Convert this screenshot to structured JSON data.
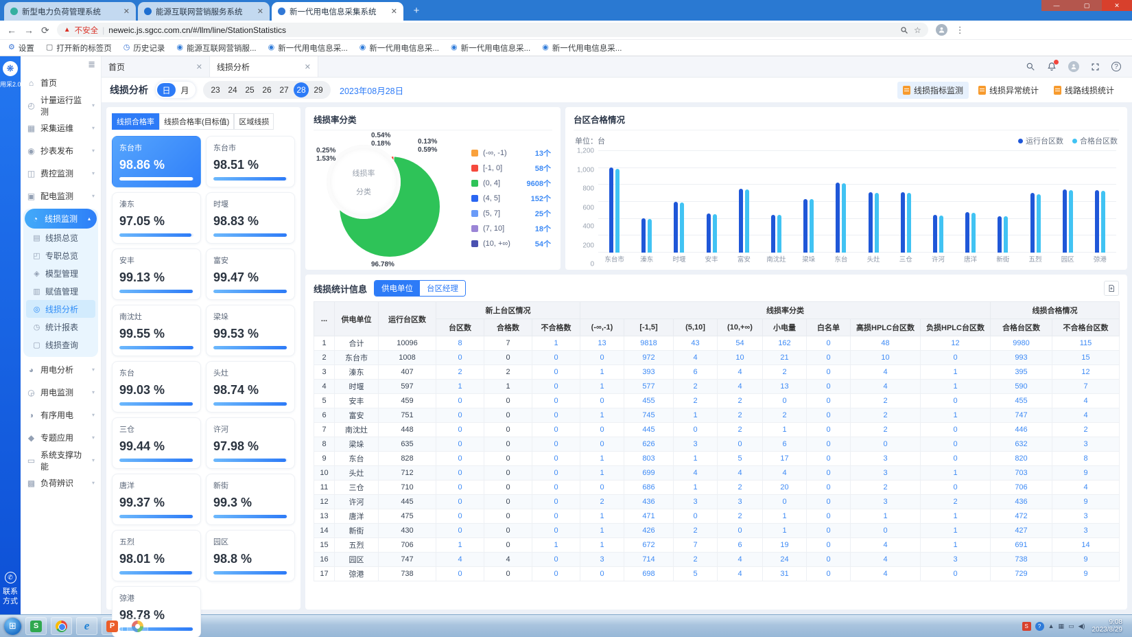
{
  "browser": {
    "tabs": [
      {
        "title": "新型电力负荷管理系统",
        "active": false,
        "favicon_color": "#35b0a0"
      },
      {
        "title": "能源互联网营销服务系统",
        "active": false,
        "favicon_color": "#1f6fd0"
      },
      {
        "title": "新一代用电信息采集系统",
        "active": true,
        "favicon_color": "#3178d6"
      }
    ],
    "new_tab_label": "+",
    "security_warning": "不安全",
    "url": "neweic.js.sgcc.com.cn/#/llm/line/StationStatistics",
    "bookmarks": [
      {
        "label": "设置",
        "icon": "gear"
      },
      {
        "label": "打开新的标签页",
        "icon": "page"
      },
      {
        "label": "历史记录",
        "icon": "clock"
      },
      {
        "label": "能源互联网营销服...",
        "icon": "site"
      },
      {
        "label": "新一代用电信息采...",
        "icon": "site"
      },
      {
        "label": "新一代用电信息采...",
        "icon": "site"
      },
      {
        "label": "新一代用电信息采...",
        "icon": "site"
      },
      {
        "label": "新一代用电信息采...",
        "icon": "site"
      }
    ]
  },
  "brand": {
    "app_label": "用采2.0",
    "contact_label": "联系方式"
  },
  "sidebar": {
    "items": [
      {
        "label": "首页",
        "icon": "home"
      },
      {
        "label": "计量运行监测",
        "icon": "meter",
        "arrow": "down"
      },
      {
        "label": "采集运维",
        "icon": "collect",
        "arrow": "down"
      },
      {
        "label": "抄表发布",
        "icon": "reading",
        "arrow": "down"
      },
      {
        "label": "费控监测",
        "icon": "fee",
        "arrow": "down"
      },
      {
        "label": "配电监测",
        "icon": "distribution",
        "arrow": "down"
      },
      {
        "label": "线损监测",
        "icon": "lineloss",
        "arrow": "up",
        "active": true,
        "children": [
          {
            "label": "线损总览",
            "icon": "overview"
          },
          {
            "label": "专职总览",
            "icon": "duty"
          },
          {
            "label": "模型管理",
            "icon": "model"
          },
          {
            "label": "赋值管理",
            "icon": "assign"
          },
          {
            "label": "线损分析",
            "icon": "analysis",
            "active": true
          },
          {
            "label": "统计报表",
            "icon": "report"
          },
          {
            "label": "线损查询",
            "icon": "query"
          }
        ]
      },
      {
        "label": "用电分析",
        "icon": "usage-analysis",
        "arrow": "down"
      },
      {
        "label": "用电监测",
        "icon": "usage-monitor",
        "arrow": "down"
      },
      {
        "label": "有序用电",
        "icon": "orderly",
        "arrow": "down"
      },
      {
        "label": "专题应用",
        "icon": "special",
        "arrow": "down"
      },
      {
        "label": "系统支撑功能",
        "icon": "system",
        "arrow": "down"
      },
      {
        "label": "负荷辨识",
        "icon": "load",
        "arrow": "down"
      }
    ]
  },
  "page_tabs": [
    {
      "label": "首页",
      "active": false
    },
    {
      "label": "线损分析",
      "active": true
    }
  ],
  "header_icons": [
    "search",
    "notifications",
    "user",
    "fullscreen",
    "help"
  ],
  "filter": {
    "title": "线损分析",
    "mode_options": [
      "日",
      "月"
    ],
    "mode_selected": "日",
    "days": [
      "23",
      "24",
      "25",
      "26",
      "27",
      "28",
      "29"
    ],
    "day_selected": "28",
    "date_label": "2023年08月28日"
  },
  "report_links": [
    {
      "label": "线损指标监测",
      "active": true
    },
    {
      "label": "线损异常统计",
      "active": false
    },
    {
      "label": "线路线损统计",
      "active": false
    }
  ],
  "cards_panel": {
    "tabs": [
      {
        "label": "线损合格率",
        "active": true
      },
      {
        "label": "线损合格率(目标值)",
        "active": false
      },
      {
        "label": "区域线损",
        "active": false
      }
    ],
    "cards": [
      {
        "name": "东台市",
        "value": "98.86 %",
        "pct": 98.86,
        "selected": true
      },
      {
        "name": "东台市",
        "value": "98.51 %",
        "pct": 98.51
      },
      {
        "name": "溱东",
        "value": "97.05 %",
        "pct": 97.05
      },
      {
        "name": "时堰",
        "value": "98.83 %",
        "pct": 98.83
      },
      {
        "name": "安丰",
        "value": "99.13 %",
        "pct": 99.13
      },
      {
        "name": "富安",
        "value": "99.47 %",
        "pct": 99.47
      },
      {
        "name": "南沈灶",
        "value": "99.55 %",
        "pct": 99.55
      },
      {
        "name": "梁垛",
        "value": "99.53 %",
        "pct": 99.53
      },
      {
        "name": "东台",
        "value": "99.03 %",
        "pct": 99.03
      },
      {
        "name": "头灶",
        "value": "98.74 %",
        "pct": 98.74
      },
      {
        "name": "三仓",
        "value": "99.44 %",
        "pct": 99.44
      },
      {
        "name": "许河",
        "value": "97.98 %",
        "pct": 97.98
      },
      {
        "name": "唐洋",
        "value": "99.37 %",
        "pct": 99.37
      },
      {
        "name": "新街",
        "value": "99.3 %",
        "pct": 99.3
      },
      {
        "name": "五烈",
        "value": "98.01 %",
        "pct": 98.01
      },
      {
        "name": "园区",
        "value": "98.8 %",
        "pct": 98.8
      },
      {
        "name": "弶港",
        "value": "98.78 %",
        "pct": 98.78
      }
    ]
  },
  "chart_data": [
    {
      "type": "pie",
      "title": "线损率分类",
      "center_label": [
        "线损率",
        "分类"
      ],
      "count_unit": "个",
      "slices": [
        {
          "range": "(-∞, -1)",
          "count": 13,
          "percent": "0.13%",
          "color": "#F9A13C"
        },
        {
          "range": "[-1, 0]",
          "count": 58,
          "percent": "0.59%",
          "color": "#F5493D"
        },
        {
          "range": "(0, 4]",
          "count": 9608,
          "percent": "96.78%",
          "color": "#2EC358"
        },
        {
          "range": "(4, 5]",
          "count": 152,
          "percent": "1.53%",
          "color": "#2A66F2"
        },
        {
          "range": "(5, 7]",
          "count": 25,
          "percent": "0.25%",
          "color": "#6A9BF8"
        },
        {
          "range": "(7, 10]",
          "count": 18,
          "percent": "0.18%",
          "color": "#9B85D6"
        },
        {
          "range": "(10, +∞)",
          "count": 54,
          "percent": "0.54%",
          "color": "#4A51B0"
        }
      ]
    },
    {
      "type": "bar",
      "title": "台区合格情况",
      "unit_label": "单位：台",
      "categories": [
        "东台市",
        "溱东",
        "时堰",
        "安丰",
        "富安",
        "南沈灶",
        "梁垛",
        "东台",
        "头灶",
        "三仓",
        "许河",
        "唐洋",
        "新街",
        "五烈",
        "园区",
        "弶港"
      ],
      "series": [
        {
          "name": "运行台区数",
          "color": "#1F57D8",
          "values": [
            1008,
            407,
            597,
            459,
            751,
            448,
            635,
            828,
            712,
            710,
            445,
            475,
            430,
            706,
            747,
            738
          ]
        },
        {
          "name": "合格台区数",
          "color": "#41C3F3",
          "values": [
            993,
            395,
            590,
            455,
            747,
            446,
            632,
            820,
            703,
            706,
            436,
            472,
            427,
            691,
            738,
            729
          ]
        }
      ],
      "ylim": [
        0,
        1200
      ],
      "yticks": [
        "0",
        "200",
        "400",
        "600",
        "800",
        "1,000",
        "1,200"
      ],
      "legend_position": "top-right",
      "grid": true
    }
  ],
  "table": {
    "title": "线损统计信息",
    "view_toggles": [
      {
        "label": "供电单位",
        "active": true
      },
      {
        "label": "台区经理",
        "active": false
      }
    ],
    "columns_static": [
      "...",
      "供电单位",
      "运行台区数"
    ],
    "column_groups": [
      {
        "label": "新上台区情况",
        "columns": [
          "台区数",
          "合格数",
          "不合格数"
        ]
      },
      {
        "label": "线损率分类",
        "columns": [
          "(-∞,-1)",
          "[-1,5]",
          "(5,10]",
          "(10,+∞)",
          "小电量",
          "白名单",
          "高损HPLC台区数",
          "负损HPLC台区数"
        ]
      },
      {
        "label": "线损合格情况",
        "columns": [
          "合格台区数",
          "不合格台区数"
        ]
      }
    ],
    "rows": [
      [
        1,
        "合计",
        10096,
        8,
        7,
        1,
        13,
        9818,
        43,
        54,
        162,
        0,
        48,
        12,
        9980,
        115
      ],
      [
        2,
        "东台市",
        1008,
        0,
        0,
        0,
        0,
        972,
        4,
        10,
        21,
        0,
        10,
        0,
        993,
        15
      ],
      [
        3,
        "溱东",
        407,
        2,
        2,
        0,
        1,
        393,
        6,
        4,
        2,
        0,
        4,
        1,
        395,
        12
      ],
      [
        4,
        "时堰",
        597,
        1,
        1,
        0,
        1,
        577,
        2,
        4,
        13,
        0,
        4,
        1,
        590,
        7
      ],
      [
        5,
        "安丰",
        459,
        0,
        0,
        0,
        0,
        455,
        2,
        2,
        0,
        0,
        2,
        0,
        455,
        4
      ],
      [
        6,
        "富安",
        751,
        0,
        0,
        0,
        1,
        745,
        1,
        2,
        2,
        0,
        2,
        1,
        747,
        4
      ],
      [
        7,
        "南沈灶",
        448,
        0,
        0,
        0,
        0,
        445,
        0,
        2,
        1,
        0,
        2,
        0,
        446,
        2
      ],
      [
        8,
        "梁垛",
        635,
        0,
        0,
        0,
        0,
        626,
        3,
        0,
        6,
        0,
        0,
        0,
        632,
        3
      ],
      [
        9,
        "东台",
        828,
        0,
        0,
        0,
        1,
        803,
        1,
        5,
        17,
        0,
        3,
        0,
        820,
        8
      ],
      [
        10,
        "头灶",
        712,
        0,
        0,
        0,
        1,
        699,
        4,
        4,
        4,
        0,
        3,
        1,
        703,
        9
      ],
      [
        11,
        "三仓",
        710,
        0,
        0,
        0,
        0,
        686,
        1,
        2,
        20,
        0,
        2,
        0,
        706,
        4
      ],
      [
        12,
        "许河",
        445,
        0,
        0,
        0,
        2,
        436,
        3,
        3,
        0,
        0,
        3,
        2,
        436,
        9
      ],
      [
        13,
        "唐洋",
        475,
        0,
        0,
        0,
        1,
        471,
        0,
        2,
        1,
        0,
        1,
        1,
        472,
        3
      ],
      [
        14,
        "新街",
        430,
        0,
        0,
        0,
        1,
        426,
        2,
        0,
        1,
        0,
        0,
        1,
        427,
        3
      ],
      [
        15,
        "五烈",
        706,
        1,
        0,
        1,
        1,
        672,
        7,
        6,
        19,
        0,
        4,
        1,
        691,
        14
      ],
      [
        16,
        "园区",
        747,
        4,
        4,
        0,
        3,
        714,
        2,
        4,
        24,
        0,
        4,
        3,
        738,
        9
      ],
      [
        17,
        "弶港",
        738,
        0,
        0,
        0,
        0,
        698,
        5,
        4,
        31,
        0,
        4,
        0,
        729,
        9
      ]
    ]
  },
  "taskbar": {
    "time": "9:08",
    "date": "2023/8/29"
  }
}
